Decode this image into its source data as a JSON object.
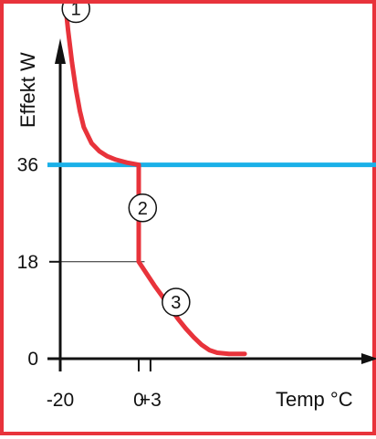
{
  "chart_data": {
    "type": "line",
    "xlabel": "Temp °C",
    "ylabel": "Effekt W",
    "x_ticks": [
      {
        "value": -20,
        "label": "-20"
      },
      {
        "value": 0,
        "label": "0"
      },
      {
        "value": 3,
        "label": "+3"
      }
    ],
    "y_ticks": [
      {
        "value": 0,
        "label": "0"
      },
      {
        "value": 18,
        "label": "18"
      },
      {
        "value": 36,
        "label": "36"
      }
    ],
    "series": [
      {
        "color": "#e8333b",
        "points": [
          [
            -20,
            76
          ],
          [
            -19,
            68
          ],
          [
            -18,
            61
          ],
          [
            -17,
            55
          ],
          [
            -16,
            50
          ],
          [
            -15,
            46
          ],
          [
            -14,
            43
          ],
          [
            -12,
            40
          ],
          [
            -10,
            38.5
          ],
          [
            -8,
            37.6
          ],
          [
            -6,
            37
          ],
          [
            -3,
            36.4
          ],
          [
            0,
            36
          ],
          [
            0,
            18
          ],
          [
            2,
            15.8
          ],
          [
            4,
            13.6
          ],
          [
            6,
            11.6
          ],
          [
            8,
            9.5
          ],
          [
            10,
            7.4
          ],
          [
            12,
            5.6
          ],
          [
            14,
            4
          ],
          [
            16,
            2.6
          ],
          [
            18,
            1.6
          ],
          [
            20,
            1.1
          ],
          [
            23,
            0.9
          ],
          [
            27,
            0.9
          ]
        ]
      }
    ],
    "reference_lines": [
      {
        "axis": "y",
        "value": 36,
        "color": "#1ab0e8"
      }
    ],
    "guide_lines": [
      {
        "axis": "y",
        "value": 18,
        "from_x": -20,
        "to_x": 1.5
      },
      {
        "axis": "x",
        "value": 0,
        "from_y": 0,
        "to_y": 18
      },
      {
        "axis": "x",
        "value": 3,
        "from_y": 0,
        "to_y": 15.5
      }
    ],
    "annotations": [
      {
        "text": "1",
        "x": -16,
        "y": 65
      },
      {
        "text": "2",
        "x": 1,
        "y": 28
      },
      {
        "text": "3",
        "x": 9.5,
        "y": 10.5
      }
    ],
    "xlim": [
      -20,
      29
    ],
    "ylim": [
      0,
      80
    ]
  }
}
